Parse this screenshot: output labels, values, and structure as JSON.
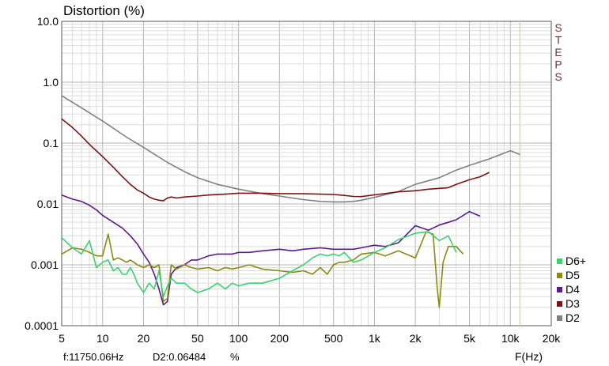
{
  "chart_data": {
    "type": "line",
    "title": "Distortion (%)",
    "xlabel": "F(Hz)",
    "x_scale": "log",
    "y_scale": "log",
    "xlim": [
      5,
      20000
    ],
    "ylim": [
      0.0001,
      10
    ],
    "x_ticks": [
      {
        "value": 5,
        "label": "5"
      },
      {
        "value": 10,
        "label": "10"
      },
      {
        "value": 20,
        "label": "20"
      },
      {
        "value": 50,
        "label": "50"
      },
      {
        "value": 100,
        "label": "100"
      },
      {
        "value": 200,
        "label": "200"
      },
      {
        "value": 500,
        "label": "500"
      },
      {
        "value": 1000,
        "label": "1k"
      },
      {
        "value": 2000,
        "label": "2k"
      },
      {
        "value": 5000,
        "label": "5k"
      },
      {
        "value": 10000,
        "label": "10k"
      },
      {
        "value": 20000,
        "label": "20k"
      }
    ],
    "y_ticks": [
      {
        "value": 10,
        "label": "10.0"
      },
      {
        "value": 1,
        "label": "1.0"
      },
      {
        "value": 0.1,
        "label": "0.1"
      },
      {
        "value": 0.01,
        "label": "0.01"
      },
      {
        "value": 0.001,
        "label": "0.001"
      },
      {
        "value": 0.0001,
        "label": "0.0001"
      }
    ],
    "grid": true,
    "legend_position": "bottom-right",
    "side_label_letters": [
      "S",
      "T",
      "E",
      "P",
      "S"
    ],
    "cursor": {
      "frequency": 11750.06,
      "readout": "f:11750.06Hz",
      "value_readout": "D2:0.06484",
      "unit": "%"
    },
    "series": [
      {
        "name": "D6+",
        "color": "#3ecf6e",
        "x": [
          5,
          6,
          7,
          8,
          9,
          10,
          11,
          12,
          13,
          14,
          15,
          16,
          17,
          18,
          20,
          22,
          24,
          26,
          28,
          30,
          32,
          35,
          40,
          45,
          50,
          60,
          70,
          80,
          90,
          100,
          120,
          150,
          200,
          250,
          300,
          350,
          400,
          450,
          500,
          550,
          600,
          700,
          800,
          1000,
          1200,
          1500,
          2000,
          2500,
          3000,
          3500,
          4000
        ],
        "y": [
          0.0028,
          0.0019,
          0.0015,
          0.0025,
          0.0009,
          0.0011,
          0.0012,
          0.0008,
          0.0009,
          0.0007,
          0.0007,
          0.0009,
          0.0007,
          0.0005,
          0.00035,
          0.0005,
          0.0004,
          0.0008,
          0.0003,
          0.00045,
          0.0006,
          0.0005,
          0.0005,
          0.0004,
          0.00035,
          0.0004,
          0.0005,
          0.0004,
          0.0005,
          0.00045,
          0.0005,
          0.0005,
          0.0006,
          0.0008,
          0.001,
          0.0013,
          0.0015,
          0.0014,
          0.0015,
          0.0014,
          0.0016,
          0.0011,
          0.0012,
          0.0016,
          0.0019,
          0.0026,
          0.0033,
          0.0035,
          0.0025,
          0.003,
          0.0016
        ]
      },
      {
        "name": "D5",
        "color": "#8a8a10",
        "x": [
          5,
          6,
          7,
          8,
          9,
          10,
          11,
          12,
          13,
          14,
          15,
          16,
          17,
          18,
          20,
          22,
          24,
          26,
          28,
          30,
          32,
          35,
          40,
          45,
          50,
          60,
          70,
          80,
          90,
          100,
          120,
          150,
          200,
          250,
          300,
          350,
          400,
          450,
          500,
          550,
          600,
          700,
          800,
          1000,
          1200,
          1500,
          2000,
          2400,
          2700,
          2900,
          3000,
          3200,
          3500,
          4000,
          4500
        ],
        "y": [
          0.0015,
          0.0019,
          0.0018,
          0.0016,
          0.0014,
          0.0014,
          0.0032,
          0.0012,
          0.0013,
          0.0012,
          0.0011,
          0.0012,
          0.0011,
          0.001,
          0.0009,
          0.001,
          0.0009,
          0.001,
          0.00025,
          0.00028,
          0.001,
          0.00085,
          0.001,
          0.0009,
          0.00085,
          0.0009,
          0.0008,
          0.0009,
          0.00085,
          0.0009,
          0.001,
          0.00085,
          0.0008,
          0.00075,
          0.0008,
          0.0007,
          0.0009,
          0.0007,
          0.001,
          0.0011,
          0.0011,
          0.0012,
          0.0015,
          0.0016,
          0.0014,
          0.0017,
          0.0013,
          0.0035,
          0.0032,
          0.0004,
          0.0002,
          0.0011,
          0.002,
          0.002,
          0.0015
        ]
      },
      {
        "name": "D4",
        "color": "#5a1a8c",
        "x": [
          5,
          6,
          7,
          8,
          9,
          10,
          12,
          14,
          16,
          18,
          20,
          22,
          24,
          26,
          28,
          30,
          32,
          35,
          40,
          45,
          50,
          60,
          70,
          80,
          90,
          100,
          120,
          150,
          200,
          250,
          300,
          400,
          500,
          600,
          700,
          800,
          1000,
          1200,
          1500,
          2000,
          2500,
          3000,
          3500,
          4000,
          5000,
          6000
        ],
        "y": [
          0.014,
          0.012,
          0.011,
          0.0095,
          0.008,
          0.0065,
          0.005,
          0.004,
          0.003,
          0.0022,
          0.0015,
          0.0011,
          0.0007,
          0.0004,
          0.00022,
          0.00025,
          0.0007,
          0.0009,
          0.001,
          0.0012,
          0.0012,
          0.0014,
          0.0015,
          0.0015,
          0.0015,
          0.0016,
          0.0016,
          0.0017,
          0.0018,
          0.0017,
          0.0018,
          0.0019,
          0.0018,
          0.0018,
          0.0018,
          0.0019,
          0.0021,
          0.002,
          0.0023,
          0.0044,
          0.0037,
          0.0045,
          0.005,
          0.0055,
          0.0075,
          0.0063
        ]
      },
      {
        "name": "D3",
        "color": "#7a1414",
        "x": [
          5,
          6,
          7,
          8,
          10,
          12,
          14,
          16,
          18,
          20,
          22,
          24,
          26,
          28,
          30,
          32,
          35,
          40,
          50,
          60,
          80,
          100,
          150,
          200,
          300,
          400,
          500,
          600,
          700,
          800,
          1000,
          1500,
          2000,
          2500,
          3000,
          3500,
          4000,
          5000,
          6000,
          7000
        ],
        "y": [
          0.25,
          0.18,
          0.13,
          0.095,
          0.06,
          0.04,
          0.028,
          0.021,
          0.017,
          0.015,
          0.013,
          0.012,
          0.0115,
          0.0113,
          0.0125,
          0.013,
          0.0125,
          0.013,
          0.0135,
          0.014,
          0.0145,
          0.015,
          0.015,
          0.0148,
          0.0147,
          0.0145,
          0.0143,
          0.0138,
          0.0133,
          0.0132,
          0.0141,
          0.0158,
          0.0165,
          0.0175,
          0.018,
          0.0185,
          0.021,
          0.025,
          0.028,
          0.033
        ]
      },
      {
        "name": "D2",
        "color": "#808080",
        "x": [
          5,
          7,
          10,
          15,
          20,
          30,
          40,
          50,
          70,
          100,
          150,
          200,
          300,
          400,
          500,
          600,
          700,
          800,
          1000,
          1500,
          2000,
          3000,
          4000,
          5000,
          7000,
          10000,
          11750
        ],
        "y": [
          0.6,
          0.38,
          0.23,
          0.125,
          0.085,
          0.048,
          0.034,
          0.027,
          0.021,
          0.0175,
          0.0148,
          0.0135,
          0.0118,
          0.011,
          0.0108,
          0.0108,
          0.011,
          0.0115,
          0.0128,
          0.016,
          0.021,
          0.027,
          0.036,
          0.043,
          0.055,
          0.075,
          0.0648
        ]
      }
    ]
  }
}
